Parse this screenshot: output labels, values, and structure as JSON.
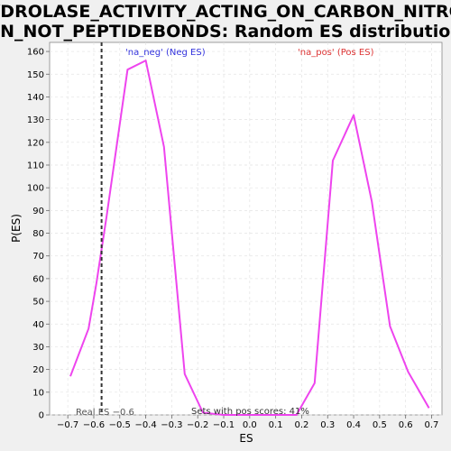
{
  "chart_data": {
    "type": "line",
    "title_lines": [
      "HYDROLASE_ACTIVITY_ACTING_ON_CARBON_NITROG",
      "EN_NOT_PEPTIDEBONDS: Random ES distribution"
    ],
    "xlabel": "ES",
    "ylabel": "P(ES)",
    "xlim": [
      -0.77,
      0.74
    ],
    "ylim": [
      0,
      164
    ],
    "xticks": [
      -0.7,
      -0.6,
      -0.5,
      -0.4,
      -0.3,
      -0.2,
      -0.1,
      0.0,
      0.1,
      0.2,
      0.3,
      0.4,
      0.5,
      0.6,
      0.7
    ],
    "xtick_labels": [
      "−0.7",
      "−0.6",
      "−0.5",
      "−0.4",
      "−0.3",
      "−0.2",
      "−0.1",
      "0.0",
      "0.1",
      "0.2",
      "0.3",
      "0.4",
      "0.5",
      "0.6",
      "0.7"
    ],
    "yticks": [
      0,
      10,
      20,
      30,
      40,
      50,
      60,
      70,
      80,
      90,
      100,
      110,
      120,
      130,
      140,
      150,
      160
    ],
    "grid": true,
    "line_color": "#ee44ee",
    "series": [
      {
        "x": [
          -0.69,
          -0.62,
          -0.59,
          -0.55,
          -0.47,
          -0.4,
          -0.33,
          -0.25,
          -0.18,
          -0.1,
          -0.03,
          0.04,
          0.11,
          0.18,
          0.25,
          0.32,
          0.4,
          0.47,
          0.54,
          0.61,
          0.69
        ],
        "y": [
          17,
          38,
          58,
          88,
          152,
          156,
          118,
          18,
          1,
          0,
          0,
          0,
          0,
          0,
          14,
          112,
          132,
          94,
          39,
          19,
          3
        ]
      }
    ],
    "real_es": -0.57,
    "real_es_label": "Real ES −0.6",
    "annotations": {
      "neg": {
        "text": "'na_neg' (Neg ES)",
        "color": "#3333dd"
      },
      "pos": {
        "text": "'na_pos' (Pos ES)",
        "color": "#dd3333"
      },
      "sets": {
        "text": "Sets with pos scores: 41%",
        "color": "#333333"
      }
    }
  }
}
